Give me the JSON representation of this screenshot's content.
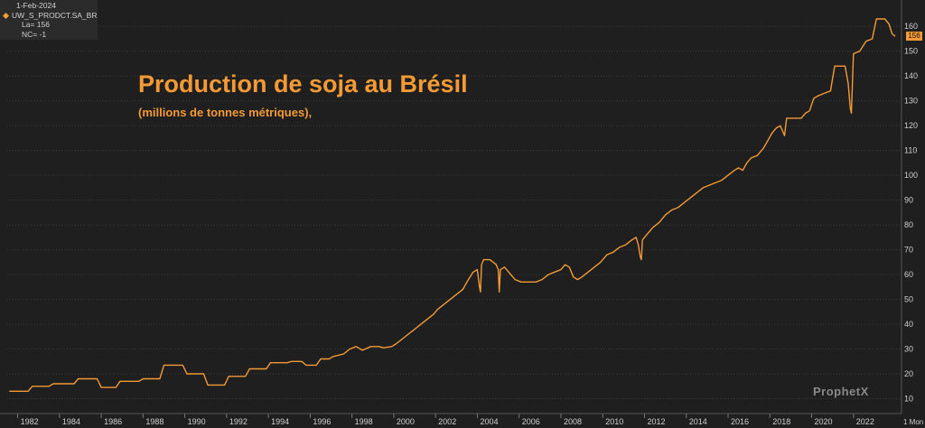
{
  "legend": {
    "date": "1-Feb-2024",
    "symbol": "UW_S_PRODCT.SA_BR",
    "last": "La= 156",
    "net_change": "NC= -1"
  },
  "brand": "ProphetX",
  "footer_label": "1 Mon",
  "colors": {
    "line": "#f39a36",
    "background": "#1f1f1f",
    "grid": "#3a3a3a"
  },
  "chart_data": {
    "type": "line",
    "title": "Production de soja au Brésil",
    "subtitle": "(millions de tonnes métriques),",
    "x_ticks": [
      "1982",
      "1984",
      "1986",
      "1988",
      "1990",
      "1992",
      "1994",
      "1996",
      "1998",
      "2000",
      "2002",
      "2004",
      "2006",
      "2008",
      "2010",
      "2012",
      "2014",
      "2016",
      "2018",
      "2020",
      "2022"
    ],
    "y_ticks": [
      10,
      20,
      30,
      40,
      50,
      60,
      70,
      80,
      90,
      100,
      110,
      120,
      130,
      140,
      150,
      160
    ],
    "xlim": [
      1981.5,
      2024.3
    ],
    "ylim": [
      4,
      167
    ],
    "last_value": 156,
    "series": [
      {
        "values": [
          [
            1981.6,
            13
          ],
          [
            1982.5,
            13
          ],
          [
            1982.7,
            15
          ],
          [
            1983.5,
            15
          ],
          [
            1983.7,
            16
          ],
          [
            1984.7,
            16
          ],
          [
            1984.9,
            18
          ],
          [
            1985.8,
            18
          ],
          [
            1986.0,
            14.5
          ],
          [
            1986.7,
            14.5
          ],
          [
            1986.9,
            17
          ],
          [
            1987.8,
            17
          ],
          [
            1988.0,
            18
          ],
          [
            1988.8,
            18
          ],
          [
            1989.0,
            23.5
          ],
          [
            1989.9,
            23.5
          ],
          [
            1990.1,
            20
          ],
          [
            1990.9,
            20
          ],
          [
            1991.1,
            15.5
          ],
          [
            1991.9,
            15.5
          ],
          [
            1992.1,
            19
          ],
          [
            1992.9,
            19
          ],
          [
            1993.1,
            22
          ],
          [
            1993.9,
            22
          ],
          [
            1994.1,
            24.5
          ],
          [
            1994.9,
            24.5
          ],
          [
            1995.1,
            25
          ],
          [
            1995.6,
            25
          ],
          [
            1995.8,
            23.5
          ],
          [
            1996.3,
            23.5
          ],
          [
            1996.5,
            26
          ],
          [
            1996.9,
            26
          ],
          [
            1997.1,
            27
          ],
          [
            1997.6,
            28
          ],
          [
            1997.9,
            30
          ],
          [
            1998.2,
            31
          ],
          [
            1998.5,
            29.5
          ],
          [
            1998.9,
            31
          ],
          [
            1999.3,
            31
          ],
          [
            1999.5,
            30.5
          ],
          [
            1999.9,
            31
          ],
          [
            2000.1,
            32
          ],
          [
            2000.4,
            34
          ],
          [
            2000.7,
            36
          ],
          [
            2001.0,
            38
          ],
          [
            2001.3,
            40
          ],
          [
            2001.6,
            42
          ],
          [
            2001.9,
            44
          ],
          [
            2002.1,
            46
          ],
          [
            2002.4,
            48
          ],
          [
            2002.7,
            50
          ],
          [
            2003.0,
            52
          ],
          [
            2003.3,
            54
          ],
          [
            2003.5,
            57
          ],
          [
            2003.8,
            61
          ],
          [
            2004.0,
            62
          ],
          [
            2004.1,
            55
          ],
          [
            2004.15,
            53
          ],
          [
            2004.2,
            64
          ],
          [
            2004.3,
            66
          ],
          [
            2004.6,
            66
          ],
          [
            2004.9,
            64
          ],
          [
            2005.0,
            62
          ],
          [
            2005.05,
            53
          ],
          [
            2005.1,
            62
          ],
          [
            2005.3,
            63
          ],
          [
            2005.5,
            61
          ],
          [
            2005.8,
            58
          ],
          [
            2006.1,
            57
          ],
          [
            2006.4,
            57
          ],
          [
            2006.8,
            57
          ],
          [
            2007.1,
            58
          ],
          [
            2007.4,
            60
          ],
          [
            2007.7,
            61
          ],
          [
            2008.0,
            62
          ],
          [
            2008.2,
            64
          ],
          [
            2008.4,
            63
          ],
          [
            2008.6,
            59
          ],
          [
            2008.8,
            58
          ],
          [
            2009.0,
            59
          ],
          [
            2009.3,
            61
          ],
          [
            2009.6,
            63
          ],
          [
            2009.9,
            65
          ],
          [
            2010.2,
            68
          ],
          [
            2010.5,
            69
          ],
          [
            2010.8,
            71
          ],
          [
            2011.1,
            72
          ],
          [
            2011.4,
            74
          ],
          [
            2011.6,
            75
          ],
          [
            2011.7,
            72
          ],
          [
            2011.8,
            67
          ],
          [
            2011.85,
            66
          ],
          [
            2011.9,
            74
          ],
          [
            2012.1,
            76
          ],
          [
            2012.4,
            79
          ],
          [
            2012.7,
            81
          ],
          [
            2013.0,
            84
          ],
          [
            2013.3,
            86
          ],
          [
            2013.6,
            87
          ],
          [
            2013.9,
            89
          ],
          [
            2014.2,
            91
          ],
          [
            2014.5,
            93
          ],
          [
            2014.8,
            95
          ],
          [
            2015.1,
            96
          ],
          [
            2015.4,
            97
          ],
          [
            2015.7,
            98
          ],
          [
            2016.0,
            100
          ],
          [
            2016.3,
            102
          ],
          [
            2016.5,
            103
          ],
          [
            2016.7,
            102
          ],
          [
            2016.9,
            105
          ],
          [
            2017.1,
            107
          ],
          [
            2017.4,
            108
          ],
          [
            2017.7,
            111
          ],
          [
            2017.9,
            114
          ],
          [
            2018.1,
            117
          ],
          [
            2018.3,
            119
          ],
          [
            2018.5,
            120
          ],
          [
            2018.65,
            117
          ],
          [
            2018.7,
            116
          ],
          [
            2018.8,
            123
          ],
          [
            2019.2,
            123
          ],
          [
            2019.5,
            123
          ],
          [
            2019.7,
            125
          ],
          [
            2019.9,
            126
          ],
          [
            2020.1,
            131
          ],
          [
            2020.3,
            132
          ],
          [
            2020.6,
            133
          ],
          [
            2020.9,
            134
          ],
          [
            2021.1,
            144
          ],
          [
            2021.6,
            144
          ],
          [
            2021.75,
            137
          ],
          [
            2021.85,
            127
          ],
          [
            2021.9,
            125
          ],
          [
            2022.0,
            149
          ],
          [
            2022.3,
            150
          ],
          [
            2022.6,
            154
          ],
          [
            2022.9,
            155
          ],
          [
            2023.1,
            163
          ],
          [
            2023.5,
            163
          ],
          [
            2023.7,
            161
          ],
          [
            2023.85,
            157
          ],
          [
            2024.0,
            156
          ]
        ]
      }
    ]
  }
}
